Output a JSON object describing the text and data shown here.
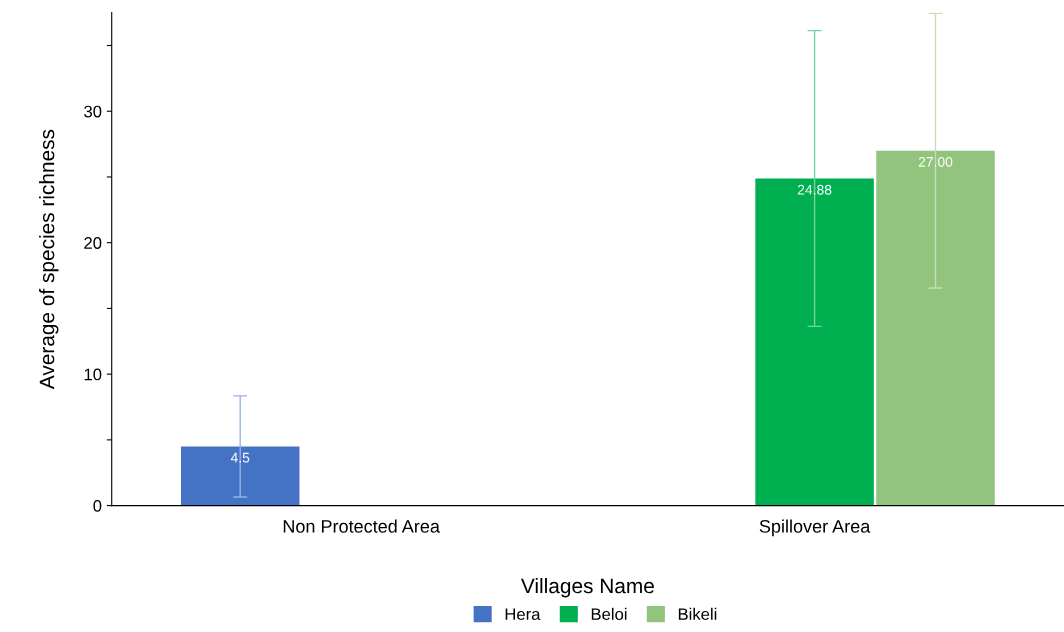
{
  "chart_data": {
    "type": "bar",
    "xlabel": "Villages Name",
    "ylabel": "Average of species richness",
    "categories": [
      "Non Protected Area",
      "Spillover Area"
    ],
    "series": [
      {
        "name": "Hera",
        "color": "#4472c4",
        "values": [
          4.5,
          null
        ],
        "errors": [
          3.85,
          null
        ],
        "value_labels": [
          "4.5",
          null
        ]
      },
      {
        "name": "Beloi",
        "color": "#00b050",
        "values": [
          null,
          24.88
        ],
        "errors": [
          null,
          11.25
        ],
        "value_labels": [
          null,
          "24.88"
        ]
      },
      {
        "name": "Bikeli",
        "color": "#93c47d",
        "values": [
          null,
          27.0
        ],
        "errors": [
          null,
          10.45
        ],
        "value_labels": [
          null,
          "27.00"
        ]
      }
    ],
    "ylim": [
      0,
      37.5
    ],
    "yticks": [
      0,
      {
        "value": 5,
        "label": null
      },
      10,
      {
        "value": 15,
        "label": null
      },
      20,
      {
        "value": 25,
        "label": null
      },
      30,
      {
        "value": 35,
        "label": null
      }
    ],
    "grid": false,
    "legend": "bottom"
  }
}
